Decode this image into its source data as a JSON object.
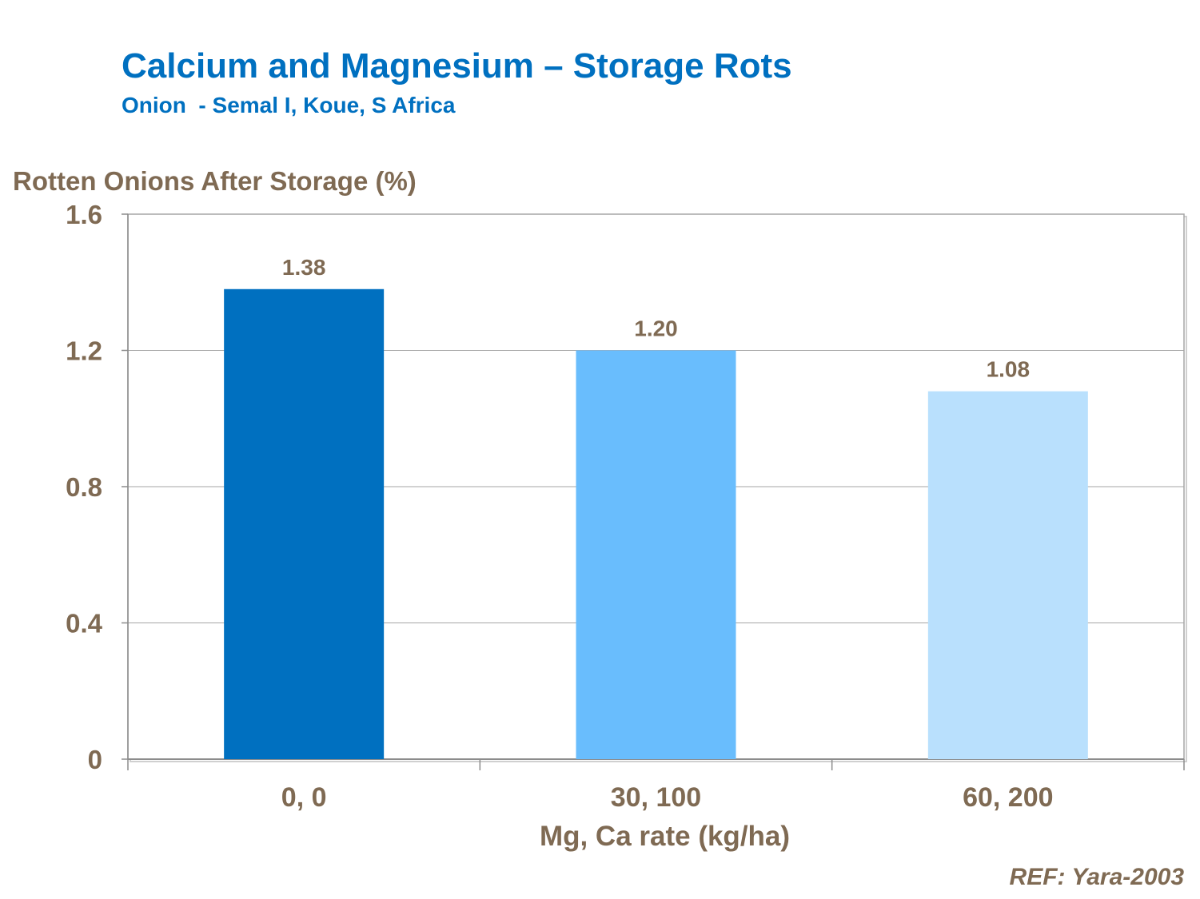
{
  "colors": {
    "title": "#0070C0",
    "text": "#7F6A53",
    "bar_colors": [
      "#0070C0",
      "#69BDFD",
      "#B9E0FD"
    ],
    "grid": "#A6A6A6",
    "axis": "#8C8C8C"
  },
  "chart_data": {
    "type": "bar",
    "title": "Calcium and Magnesium – Storage Rots",
    "subtitle": "Onion  - Semal I, Koue, S Africa",
    "ylabel": "Rotten Onions After Storage (%)",
    "xlabel": "Mg, Ca rate (kg/ha)",
    "categories": [
      "0, 0",
      "30, 100",
      "60, 200"
    ],
    "values": [
      1.38,
      1.2,
      1.08
    ],
    "data_labels": [
      "1.38",
      "1.20",
      "1.08"
    ],
    "ylim": [
      0,
      1.6
    ],
    "yticks": [
      0,
      0.4,
      0.8,
      1.2,
      1.6
    ],
    "ytick_labels": [
      "0",
      "0.4",
      "0.8",
      "1.2",
      "1.6"
    ],
    "grid": true,
    "legend": "none"
  },
  "footer": {
    "reference": "REF: Yara-2003"
  }
}
